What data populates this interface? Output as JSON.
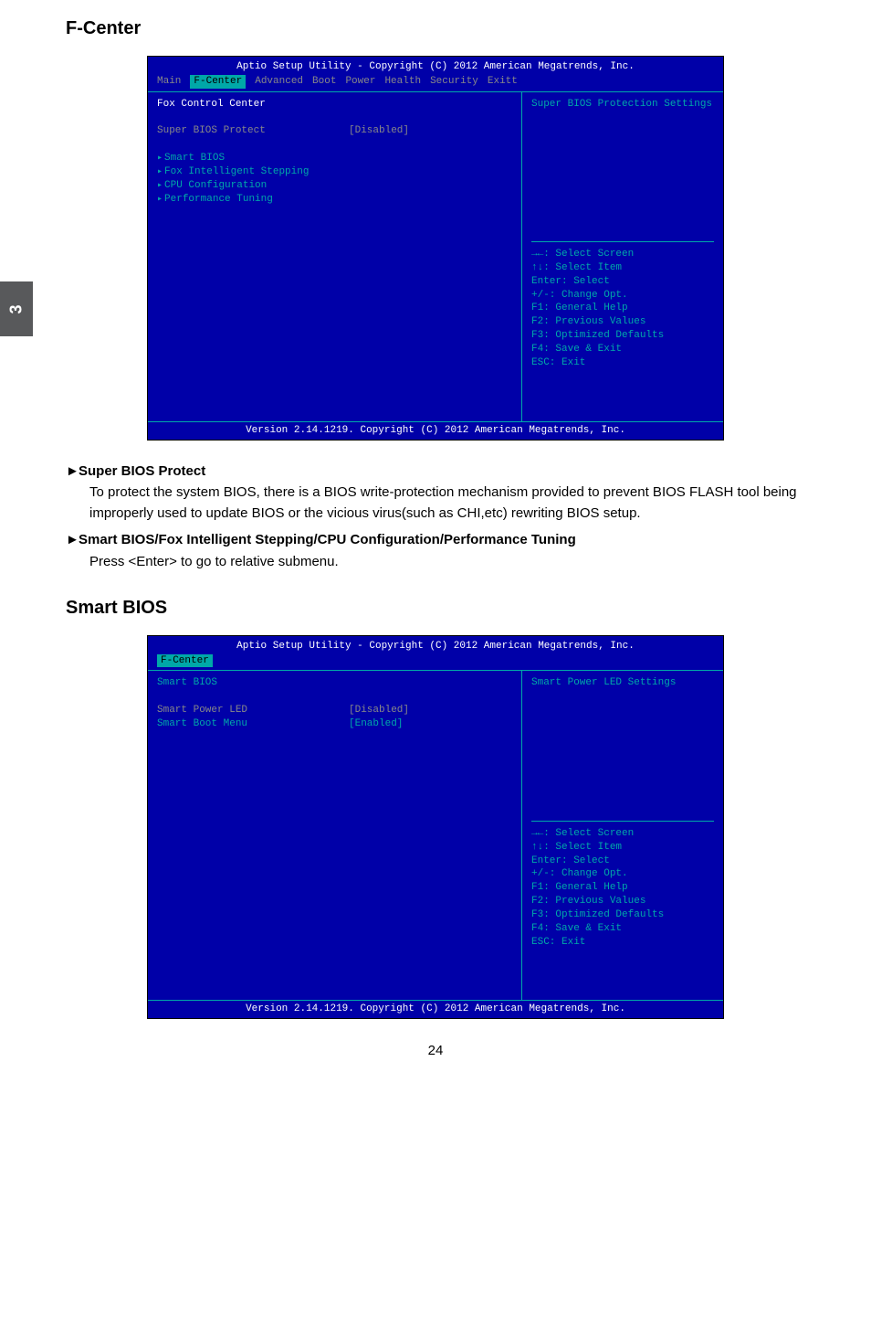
{
  "side_tab": "3",
  "section1_title": "F-Center",
  "section2_title": "Smart BIOS",
  "bios_common": {
    "header": "Aptio Setup Utility - Copyright (C) 2012 American Megatrends, Inc.",
    "footer": "Version 2.14.1219. Copyright (C) 2012 American Megatrends, Inc.",
    "help": {
      "l1": "→←: Select Screen",
      "l2": "↑↓: Select Item",
      "l3": "Enter: Select",
      "l4": "+/-: Change Opt.",
      "l5": "F1: General Help",
      "l6": "F2: Previous Values",
      "l7": "F3: Optimized Defaults",
      "l8": "F4: Save & Exit",
      "l9": "ESC: Exit"
    }
  },
  "bios1": {
    "menu": {
      "m1": "Main",
      "m2": "F-Center",
      "m3": "Advanced",
      "m4": "Boot",
      "m5": "Power",
      "m6": "Health",
      "m7": "Security",
      "m8": "Exitt"
    },
    "left": {
      "title": "Fox Control Center",
      "r1_label": "Super BIOS Protect",
      "r1_val": "[Disabled]",
      "sm1": "Smart BIOS",
      "sm2": "Fox Intelligent Stepping",
      "sm3": "CPU Configuration",
      "sm4": "Performance Tuning"
    },
    "right_top": "Super BIOS Protection Settings"
  },
  "bios2": {
    "menu_active": "F-Center",
    "left": {
      "title": "Smart BIOS",
      "r1_label": "Smart Power LED",
      "r1_val": "[Disabled]",
      "r2_label": "Smart Boot Menu",
      "r2_val": "[Enabled]"
    },
    "right_top": "Smart Power LED Settings"
  },
  "desc": {
    "i1_head": "Super BIOS Protect",
    "i1_body": "To protect the system BIOS, there is a BIOS write-protection mechanism provided to prevent BIOS FLASH tool being improperly used to update BIOS or the vicious virus(such as CHI,etc) rewriting BIOS setup.",
    "i2_head": "Smart BIOS/Fox Intelligent Stepping/CPU Configuration/Performance Tuning",
    "i2_body": "Press <Enter> to go to relative submenu."
  },
  "page_number": "24"
}
